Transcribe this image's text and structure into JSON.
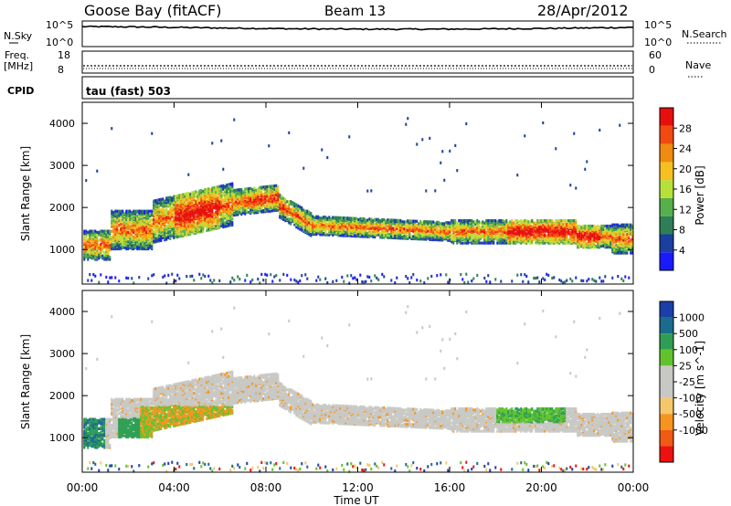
{
  "header": {
    "station": "Goose Bay (fitACF)",
    "beam": "Beam 13",
    "date": "28/Apr/2012"
  },
  "strip": {
    "nsky_label": "N.Sky",
    "nsky_ticks": [
      "10^5",
      "10^0"
    ],
    "nsearch_label": "N.Search",
    "nsearch_ticks": [
      "10^5",
      "10^0"
    ],
    "freq_label": "Freq.",
    "freq_unit": "[MHz]",
    "freq_ticks": [
      "18",
      "8"
    ],
    "nave_label": "Nave",
    "nave_ticks": [
      "60",
      "0"
    ],
    "cpid_label": "CPID",
    "cpid_text": "tau (fast) 503"
  },
  "colors": {
    "power_scale": [
      "#1a1aff",
      "#1b3fa0",
      "#2e7f57",
      "#55b04c",
      "#b8e03a",
      "#f5c020",
      "#f08a10",
      "#f04a10",
      "#e80e0e"
    ],
    "velocity_scale": [
      "#ee1111",
      "#f05a12",
      "#f7941d",
      "#f5c76a",
      "#c8c8c4",
      "#c8c8c4",
      "#62c22e",
      "#2e9e52",
      "#1a6b8c",
      "#1a3fa8"
    ]
  },
  "chart_data": [
    {
      "type": "heatmap",
      "panel": "power",
      "ylabel": "Slant Range [km]",
      "yticks": [
        "1000",
        "2000",
        "3000",
        "4000"
      ],
      "ylim": [
        180,
        4500
      ],
      "xlim": [
        0,
        24
      ],
      "colorbar_label": "Power [dB]",
      "colorbar_ticks": [
        "4",
        "8",
        "12",
        "16",
        "20",
        "24",
        "28"
      ],
      "colorbar_range": [
        0,
        32
      ]
    },
    {
      "type": "heatmap",
      "panel": "velocity",
      "ylabel": "Slant Range [km]",
      "yticks": [
        "1000",
        "2000",
        "3000",
        "4000"
      ],
      "ylim": [
        180,
        4500
      ],
      "xlim": [
        0,
        24
      ],
      "xticks": [
        "00:00",
        "04:00",
        "08:00",
        "12:00",
        "16:00",
        "20:00",
        "00:00"
      ],
      "xlabel": "Time UT",
      "colorbar_label": "Velocity [m s^-1]",
      "colorbar_ticks": [
        "1000",
        "500",
        "100",
        "25",
        "-25",
        "-100",
        "-500",
        "-1000"
      ]
    }
  ]
}
